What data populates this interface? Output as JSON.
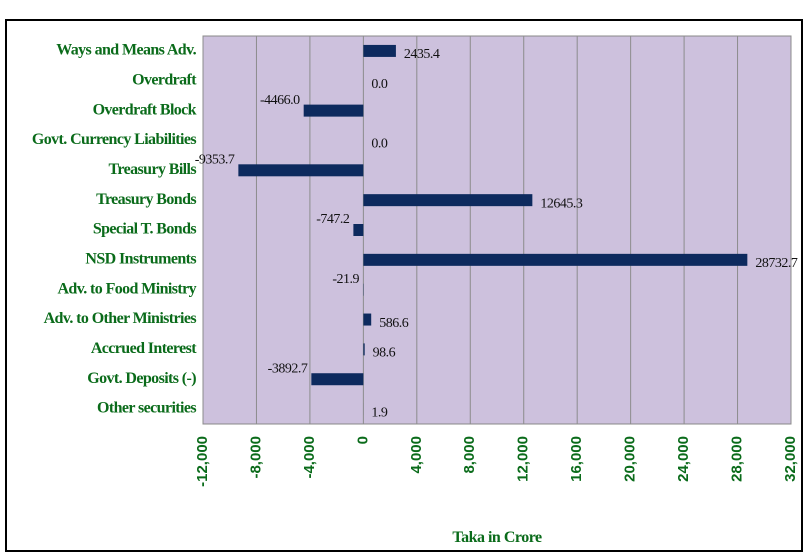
{
  "chart_data": {
    "type": "barh",
    "categories": [
      "Ways and Means Adv.",
      "Overdraft",
      "Overdraft Block",
      "Govt. Currency Liabilities",
      "Treasury Bills",
      "Treasury Bonds",
      "Special T. Bonds",
      "NSD Instruments",
      "Adv. to Food Ministry",
      "Adv. to Other Ministries",
      "Accrued Interest",
      "Govt. Deposits (-)",
      "Other securities"
    ],
    "values": [
      2435.4,
      0,
      -4466.0,
      0,
      -9353.7,
      12645.3,
      -747.2,
      28732.7,
      -21.9,
      586.6,
      98.6,
      -3892.7,
      1.9
    ],
    "value_labels": [
      "2435.4",
      "0.0",
      "-4466.0",
      "0.0",
      "-9353.7",
      "12645.3",
      "-747.2",
      "28732.7",
      "-21.9",
      "586.6",
      "98.6",
      "-3892.7",
      "1.9"
    ],
    "color": "#0d2a5e",
    "xlabel": "Taka in Crore",
    "xlim": [
      -12000,
      32000
    ],
    "xticks": [
      {
        "value": -12000,
        "label": "-12,000"
      },
      {
        "value": -8000,
        "label": "-8,000"
      },
      {
        "value": -4000,
        "label": "-4,000"
      },
      0,
      {
        "value": 4000,
        "label": "4,000"
      },
      {
        "value": 8000,
        "label": "8,000"
      },
      {
        "value": 12000,
        "label": "12,000"
      },
      {
        "value": 16000,
        "label": "16,000"
      },
      {
        "value": 20000,
        "label": "20,000"
      },
      {
        "value": 24000,
        "label": "24,000"
      },
      {
        "value": 28000,
        "label": "28,000"
      },
      {
        "value": 32000,
        "label": "32,000"
      }
    ],
    "grid": true
  }
}
